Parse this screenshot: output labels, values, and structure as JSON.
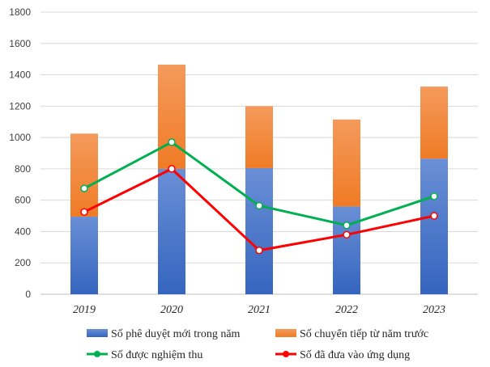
{
  "chart_data": {
    "type": "bar",
    "categories": [
      "2019",
      "2020",
      "2021",
      "2022",
      "2023"
    ],
    "ylim": [
      0,
      1800
    ],
    "yticks": [
      0,
      200,
      400,
      600,
      800,
      1000,
      1200,
      1400,
      1600,
      1800
    ],
    "grid": true,
    "legend_position": "bottom",
    "stacked_series": [
      {
        "name": "Số phê duyệt mới trong năm",
        "values": [
          495,
          800,
          805,
          560,
          865
        ],
        "color": "#4472c4"
      },
      {
        "name": "Số chuyển tiếp từ năm trước",
        "values": [
          530,
          665,
          395,
          555,
          460
        ],
        "color": "#ed7d31"
      }
    ],
    "line_series": [
      {
        "name": "Số được nghiệm thu",
        "values": [
          675,
          970,
          565,
          440,
          625
        ],
        "color": "#00b050"
      },
      {
        "name": "Số đã đưa vào ứng dụng",
        "values": [
          525,
          800,
          280,
          380,
          500
        ],
        "color": "#ff0000"
      }
    ]
  }
}
